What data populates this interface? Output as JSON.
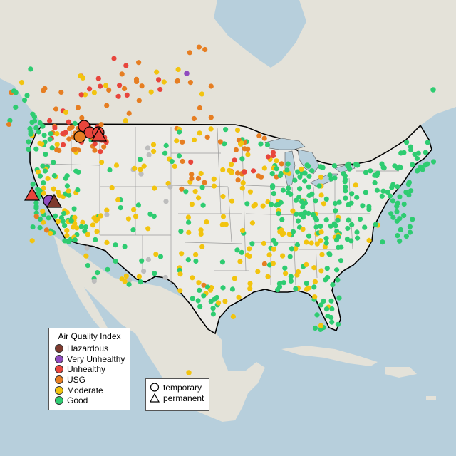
{
  "legend": {
    "title": "Air Quality Index",
    "categories": [
      {
        "label": "Hazardous",
        "color": "#7e3a2e"
      },
      {
        "label": "Very Unhealthy",
        "color": "#8f4bbf"
      },
      {
        "label": "Unhealthy",
        "color": "#e8453c"
      },
      {
        "label": "USG",
        "color": "#e67e22"
      },
      {
        "label": "Moderate",
        "color": "#f2c40f"
      },
      {
        "label": "Good",
        "color": "#2ecc71"
      }
    ],
    "monitor_types": [
      {
        "label": "temporary",
        "symbol": "circle-icon"
      },
      {
        "label": "permanent",
        "symbol": "triangle-icon"
      }
    ]
  },
  "map": {
    "basemap": "north-america-terrain",
    "colors": {
      "water": "#b7cfdc",
      "land": "#e6e4dc",
      "us_land": "#ecebe6",
      "state_border": "#9a9a9a",
      "national_border": "#000000",
      "no_data": "#bdbdbd"
    }
  }
}
